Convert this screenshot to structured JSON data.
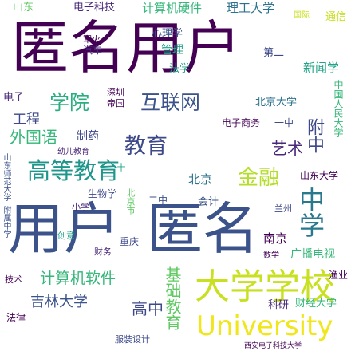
{
  "word_cloud": {
    "words": [
      {
        "text": "匿名用户",
        "color": "#440154"
      },
      {
        "text": "用户",
        "color": "#3b528b"
      },
      {
        "text": "匿名",
        "color": "#3b528b"
      },
      {
        "text": "大学学校",
        "color": "#c8e020"
      },
      {
        "text": "University",
        "color": "#f0e619"
      },
      {
        "text": "高等教育",
        "color": "#1f968b"
      },
      {
        "text": "互联网",
        "color": "#3b528b"
      },
      {
        "text": "学院",
        "color": "#29af7f"
      },
      {
        "text": "教育",
        "color": "#3e4989"
      },
      {
        "text": "金融",
        "color": "#b5de2b"
      },
      {
        "text": "中学",
        "color": "#2a788e"
      },
      {
        "text": "外国语",
        "color": "#35b779"
      },
      {
        "text": "计算机软件",
        "color": "#35b779"
      },
      {
        "text": "吉林大学",
        "color": "#3b528b"
      },
      {
        "text": "高中",
        "color": "#3e4989"
      },
      {
        "text": "基础教育",
        "color": "#5ec962"
      },
      {
        "text": "艺术",
        "color": "#482878"
      },
      {
        "text": "附中",
        "color": "#3e4989"
      },
      {
        "text": "工程",
        "color": "#3e4989"
      },
      {
        "text": "山东",
        "color": "#5ec962"
      },
      {
        "text": "电子科技",
        "color": "#482878"
      },
      {
        "text": "计算机硬件",
        "color": "#35b779"
      },
      {
        "text": "理工大学",
        "color": "#2c728e"
      },
      {
        "text": "国际",
        "color": "#c8e020"
      },
      {
        "text": "通信",
        "color": "#c8e020"
      },
      {
        "text": "心理学",
        "color": "#3b528b"
      },
      {
        "text": "管理",
        "color": "#20a386"
      },
      {
        "text": "军火",
        "color": "#440154"
      },
      {
        "text": "汽车",
        "color": "#482878"
      },
      {
        "text": "法学",
        "color": "#20a386"
      },
      {
        "text": "第二",
        "color": "#3e4989"
      },
      {
        "text": "新闻学",
        "color": "#20a386"
      },
      {
        "text": "电子",
        "color": "#482878"
      },
      {
        "text": "深圳",
        "color": "#440154"
      },
      {
        "text": "帝国",
        "color": "#440154"
      },
      {
        "text": "北京大学",
        "color": "#2c728e"
      },
      {
        "text": "中国人民大学",
        "color": "#35b779"
      },
      {
        "text": "制药",
        "color": "#3e4989"
      },
      {
        "text": "电子商务",
        "color": "#440154"
      },
      {
        "text": "一中",
        "color": "#3e4989"
      },
      {
        "text": "幼儿教育",
        "color": "#482878"
      },
      {
        "text": "十一",
        "color": "#20a386"
      },
      {
        "text": "北京",
        "color": "#2c728e"
      },
      {
        "text": "山东大学",
        "color": "#440154"
      },
      {
        "text": "生物学",
        "color": "#3e4989"
      },
      {
        "text": "北京市",
        "color": "#5ec962"
      },
      {
        "text": "二中",
        "color": "#3b528b"
      },
      {
        "text": "会计",
        "color": "#3b528b"
      },
      {
        "text": "兰州",
        "color": "#3e4989"
      },
      {
        "text": "小学",
        "color": "#482878"
      },
      {
        "text": "山东师范大学",
        "color": "#3b528b"
      },
      {
        "text": "附属中学",
        "color": "#3b528b"
      },
      {
        "text": "创意",
        "color": "#20a386"
      },
      {
        "text": "重庆",
        "color": "#3e4989"
      },
      {
        "text": "财务",
        "color": "#482878"
      },
      {
        "text": "南京",
        "color": "#440154"
      },
      {
        "text": "数学",
        "color": "#440154"
      },
      {
        "text": "广播电视",
        "color": "#35b779"
      },
      {
        "text": "技术",
        "color": "#440154"
      },
      {
        "text": "渔业",
        "color": "#440154"
      },
      {
        "text": "科研",
        "color": "#482878"
      },
      {
        "text": "财经大学",
        "color": "#35b779"
      },
      {
        "text": "法律",
        "color": "#440154"
      },
      {
        "text": "服装设计",
        "color": "#3e4989"
      },
      {
        "text": "西安电子科技大学",
        "color": "#440154"
      }
    ]
  }
}
